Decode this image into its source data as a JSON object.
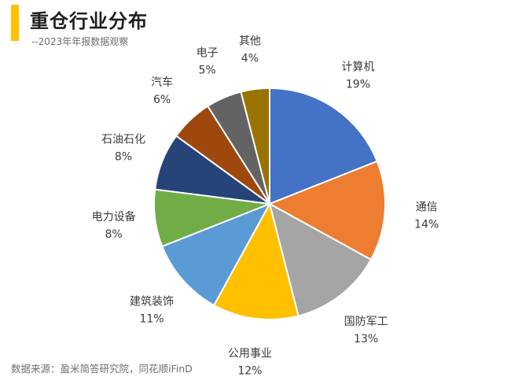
{
  "header": {
    "title": "重仓行业分布",
    "subtitle": "--2023年年报数据观察",
    "accent_color": "#ffc000"
  },
  "source": "数据来源：盈米简答研究院，同花顺iFinD",
  "chart_data": {
    "type": "pie",
    "title": "",
    "start": "12-o'clock, clockwise",
    "slices": [
      {
        "label": "计算机",
        "value": 19,
        "pct": "19%",
        "color": "#4472c4"
      },
      {
        "label": "通信",
        "value": 14,
        "pct": "14%",
        "color": "#ed7d31"
      },
      {
        "label": "国防军工",
        "value": 13,
        "pct": "13%",
        "color": "#a5a5a5"
      },
      {
        "label": "公用事业",
        "value": 12,
        "pct": "12%",
        "color": "#ffc000"
      },
      {
        "label": "建筑装饰",
        "value": 11,
        "pct": "11%",
        "color": "#5b9bd5"
      },
      {
        "label": "电力设备",
        "value": 8,
        "pct": "8%",
        "color": "#70ad47"
      },
      {
        "label": "石油石化",
        "value": 8,
        "pct": "8%",
        "color": "#264478"
      },
      {
        "label": "汽车",
        "value": 6,
        "pct": "6%",
        "color": "#9e480e"
      },
      {
        "label": "电子",
        "value": 5,
        "pct": "5%",
        "color": "#636363"
      },
      {
        "label": "其他",
        "value": 4,
        "pct": "4%",
        "color": "#997300"
      }
    ]
  }
}
